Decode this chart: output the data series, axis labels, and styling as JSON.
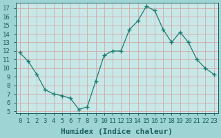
{
  "x": [
    0,
    1,
    2,
    3,
    4,
    5,
    6,
    7,
    8,
    9,
    10,
    11,
    12,
    13,
    14,
    15,
    16,
    17,
    18,
    19,
    20,
    21,
    22,
    23
  ],
  "y": [
    11.8,
    10.8,
    9.3,
    7.5,
    7.0,
    6.8,
    6.5,
    5.2,
    5.5,
    8.5,
    11.5,
    12.0,
    12.0,
    14.5,
    15.5,
    17.2,
    16.7,
    14.5,
    13.0,
    14.2,
    13.0,
    11.0,
    10.0,
    9.3
  ],
  "line_color": "#1a7a6e",
  "marker": "+",
  "marker_color": "#1a7a6e",
  "outer_bg": "#9fd4d4",
  "plot_bg": "#c8e8e8",
  "grid_color": "#d4a8a8",
  "xlabel": "Humidex (Indice chaleur)",
  "xlim": [
    -0.5,
    23.5
  ],
  "ylim": [
    4.8,
    17.6
  ],
  "yticks": [
    5,
    6,
    7,
    8,
    9,
    10,
    11,
    12,
    13,
    14,
    15,
    16,
    17
  ],
  "xticks": [
    0,
    1,
    2,
    3,
    4,
    5,
    6,
    7,
    8,
    9,
    10,
    11,
    12,
    13,
    14,
    15,
    16,
    17,
    18,
    19,
    20,
    21,
    22,
    23
  ],
  "tick_label_fontsize": 6.5,
  "xlabel_fontsize": 8,
  "text_color": "#1a5f5f"
}
